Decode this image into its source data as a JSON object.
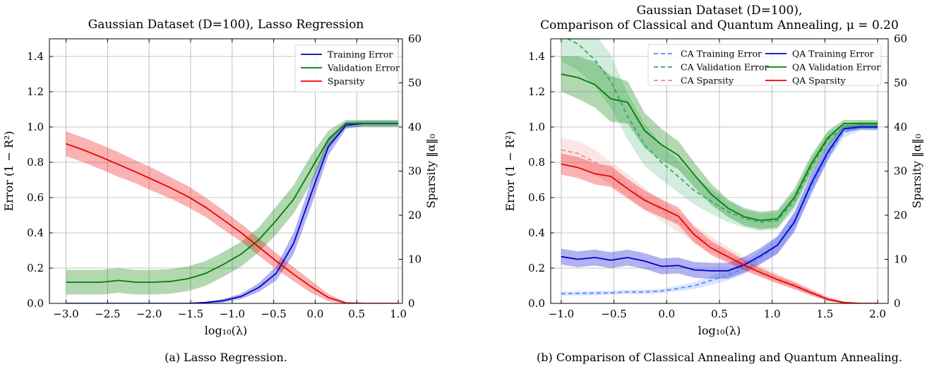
{
  "panels": [
    {
      "title": [
        "Gaussian Dataset (D=100), Lasso Regression"
      ],
      "xlabel": "log₁₀(λ)",
      "ylabel": "Error (1 − R²)",
      "y2label": "Sparsity ‖α‖₀",
      "caption": "(a) Lasso Regression.",
      "xticks": [
        "−3.0",
        "−2.5",
        "−2.0",
        "−1.5",
        "−1.0",
        "−0.5",
        "0.0",
        "0.5",
        "1.0"
      ],
      "yticks": [
        "0.0",
        "0.2",
        "0.4",
        "0.6",
        "0.8",
        "1.0",
        "1.2",
        "1.4"
      ],
      "y2ticks": [
        "0",
        "10",
        "20",
        "30",
        "40",
        "50",
        "60"
      ]
    },
    {
      "title": [
        "Gaussian Dataset (D=100),",
        "Comparison of Classical and Quantum Annealing, μ = 0.20"
      ],
      "xlabel": "log₁₀(λ)",
      "ylabel": "Error (1 − R²)",
      "y2label": "Sparsity ‖α‖₀",
      "caption": "(b) Comparison of Classical Annealing and Quantum Annealing.",
      "xticks": [
        "−1.0",
        "−0.5",
        "0.0",
        "0.5",
        "1.0",
        "1.5",
        "2.0"
      ],
      "yticks": [
        "0.0",
        "0.2",
        "0.4",
        "0.6",
        "0.8",
        "1.0",
        "1.2",
        "1.4"
      ],
      "y2ticks": [
        "0",
        "10",
        "20",
        "30",
        "40",
        "50",
        "60"
      ]
    }
  ],
  "chart_data": [
    {
      "type": "line",
      "title": "Gaussian Dataset (D=100), Lasso Regression",
      "xlabel": "log₁₀(λ)",
      "ylabel": "Error (1 − R²)",
      "y2label": "Sparsity ‖α‖₀",
      "xlim": [
        -3.2,
        1.05
      ],
      "ylim": [
        0,
        1.5
      ],
      "y2lim": [
        0,
        60
      ],
      "grid": true,
      "legend_position": "top-right",
      "x": [
        -3.0,
        -2.79,
        -2.58,
        -2.37,
        -2.16,
        -1.95,
        -1.74,
        -1.53,
        -1.32,
        -1.11,
        -0.89,
        -0.68,
        -0.47,
        -0.26,
        -0.05,
        0.16,
        0.37,
        0.58,
        0.79,
        1.0
      ],
      "series": [
        {
          "name": "Training Error",
          "axis": "left",
          "color": "#0000cc",
          "values": [
            0.0,
            0.0,
            0.0,
            0.0,
            0.0,
            0.0,
            0.0,
            0.0,
            0.005,
            0.015,
            0.04,
            0.09,
            0.17,
            0.34,
            0.62,
            0.89,
            1.01,
            1.02,
            1.02,
            1.02
          ],
          "band": [
            0.0,
            0.0,
            0.0,
            0.0,
            0.0,
            0.0,
            0.0,
            0.0,
            0.004,
            0.01,
            0.015,
            0.025,
            0.04,
            0.06,
            0.07,
            0.05,
            0.02,
            0.015,
            0.015,
            0.015
          ]
        },
        {
          "name": "Validation Error",
          "axis": "left",
          "color": "#007f00",
          "values": [
            0.12,
            0.12,
            0.12,
            0.13,
            0.12,
            0.12,
            0.125,
            0.14,
            0.17,
            0.22,
            0.28,
            0.36,
            0.47,
            0.59,
            0.76,
            0.93,
            1.02,
            1.02,
            1.02,
            1.02
          ],
          "band": [
            0.07,
            0.07,
            0.07,
            0.07,
            0.07,
            0.07,
            0.07,
            0.07,
            0.07,
            0.07,
            0.07,
            0.07,
            0.08,
            0.08,
            0.08,
            0.05,
            0.02,
            0.02,
            0.02,
            0.02
          ]
        },
        {
          "name": "Sparsity",
          "axis": "right",
          "color": "#ee0000",
          "values": [
            36.2,
            34.8,
            33.2,
            31.5,
            29.8,
            28.0,
            26.2,
            24.2,
            21.8,
            19.0,
            16.0,
            12.8,
            9.6,
            6.6,
            3.8,
            1.3,
            0.1,
            0.0,
            0.0,
            0.0
          ],
          "band": [
            2.8,
            2.8,
            2.8,
            2.8,
            2.6,
            2.6,
            2.4,
            2.4,
            2.2,
            2.2,
            2.0,
            2.0,
            1.8,
            1.6,
            1.4,
            0.8,
            0.2,
            0.0,
            0.0,
            0.0
          ]
        }
      ]
    },
    {
      "type": "line",
      "title": "Gaussian Dataset (D=100), Comparison of Classical and Quantum Annealing, μ = 0.20",
      "xlabel": "log₁₀(λ)",
      "ylabel": "Error (1 − R²)",
      "y2label": "Sparsity ‖α‖₀",
      "xlim": [
        -1.1,
        2.1
      ],
      "ylim": [
        0,
        1.5
      ],
      "y2lim": [
        0,
        60
      ],
      "grid": true,
      "legend_position": "top",
      "x": [
        -1.0,
        -0.84,
        -0.68,
        -0.53,
        -0.37,
        -0.21,
        -0.05,
        0.11,
        0.26,
        0.42,
        0.58,
        0.74,
        0.89,
        1.05,
        1.21,
        1.37,
        1.53,
        1.68,
        1.84,
        2.0
      ],
      "series": [
        {
          "name": "CA Training Error",
          "axis": "left",
          "color": "#5588ff",
          "dash": true,
          "values": [
            0.055,
            0.057,
            0.058,
            0.06,
            0.065,
            0.065,
            0.07,
            0.085,
            0.1,
            0.13,
            0.16,
            0.2,
            0.26,
            0.33,
            0.47,
            0.66,
            0.85,
            0.97,
            1.0,
            1.0
          ],
          "band": [
            0.012,
            0.012,
            0.012,
            0.012,
            0.012,
            0.012,
            0.012,
            0.015,
            0.02,
            0.025,
            0.03,
            0.035,
            0.04,
            0.045,
            0.05,
            0.05,
            0.04,
            0.03,
            0.02,
            0.02
          ]
        },
        {
          "name": "CA Validation Error",
          "axis": "left",
          "color": "#33aa66",
          "dash": true,
          "values": [
            1.52,
            1.47,
            1.38,
            1.26,
            1.06,
            0.9,
            0.8,
            0.72,
            0.64,
            0.58,
            0.52,
            0.48,
            0.46,
            0.47,
            0.58,
            0.77,
            0.93,
            1.0,
            1.01,
            1.01
          ],
          "band": [
            0.15,
            0.15,
            0.15,
            0.15,
            0.13,
            0.12,
            0.1,
            0.09,
            0.08,
            0.07,
            0.06,
            0.05,
            0.05,
            0.05,
            0.05,
            0.05,
            0.04,
            0.02,
            0.02,
            0.02
          ]
        },
        {
          "name": "CA Sparsity",
          "axis": "right",
          "color": "#ee8888",
          "dash": true,
          "values": [
            34.8,
            34.0,
            32.0,
            29.5,
            26.8,
            23.8,
            21.0,
            18.4,
            15.8,
            13.4,
            11.2,
            9.2,
            7.4,
            5.8,
            4.2,
            2.6,
            1.1,
            0.2,
            0.0,
            0.0
          ],
          "band": [
            2.8,
            2.8,
            2.8,
            2.6,
            2.6,
            2.4,
            2.4,
            2.2,
            2.0,
            1.8,
            1.6,
            1.4,
            1.2,
            1.0,
            0.9,
            0.7,
            0.5,
            0.2,
            0.0,
            0.0
          ]
        },
        {
          "name": "QA Training Error",
          "axis": "left",
          "color": "#0000cc",
          "values": [
            0.265,
            0.25,
            0.26,
            0.245,
            0.26,
            0.24,
            0.21,
            0.215,
            0.19,
            0.185,
            0.185,
            0.22,
            0.27,
            0.33,
            0.46,
            0.68,
            0.86,
            0.99,
            1.0,
            1.0
          ],
          "band": [
            0.045,
            0.045,
            0.045,
            0.045,
            0.045,
            0.045,
            0.045,
            0.045,
            0.045,
            0.045,
            0.045,
            0.045,
            0.045,
            0.05,
            0.055,
            0.055,
            0.045,
            0.02,
            0.015,
            0.015
          ]
        },
        {
          "name": "QA Validation Error",
          "axis": "left",
          "color": "#007f00",
          "values": [
            1.3,
            1.28,
            1.24,
            1.16,
            1.14,
            0.98,
            0.9,
            0.84,
            0.73,
            0.62,
            0.54,
            0.49,
            0.47,
            0.48,
            0.6,
            0.79,
            0.94,
            1.02,
            1.02,
            1.02
          ],
          "band": [
            0.1,
            0.12,
            0.13,
            0.13,
            0.12,
            0.1,
            0.09,
            0.08,
            0.07,
            0.06,
            0.05,
            0.05,
            0.05,
            0.05,
            0.05,
            0.05,
            0.04,
            0.02,
            0.02,
            0.02
          ]
        },
        {
          "name": "QA Sparsity",
          "axis": "right",
          "color": "#ee0000",
          "values": [
            31.6,
            30.8,
            29.4,
            28.8,
            26.0,
            23.4,
            21.6,
            19.8,
            15.6,
            12.6,
            10.6,
            8.6,
            7.0,
            5.4,
            4.0,
            2.4,
            0.9,
            0.2,
            0.0,
            0.0
          ],
          "band": [
            2.4,
            2.4,
            2.4,
            2.4,
            2.2,
            2.2,
            2.0,
            2.0,
            1.8,
            1.6,
            1.4,
            1.2,
            1.0,
            0.9,
            0.8,
            0.6,
            0.4,
            0.2,
            0.0,
            0.0
          ]
        }
      ]
    }
  ]
}
